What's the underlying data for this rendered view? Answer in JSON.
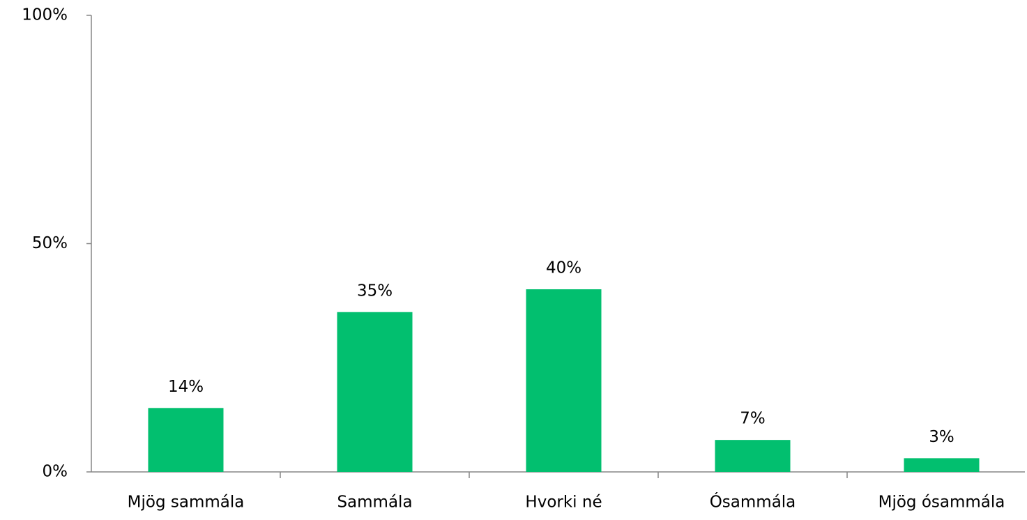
{
  "chart_data": {
    "type": "bar",
    "categories": [
      "Mjög sammála",
      "Sammála",
      "Hvorki né",
      "Ósammála",
      "Mjög ósammála"
    ],
    "values": [
      14,
      35,
      40,
      7,
      3
    ],
    "value_labels": [
      "14%",
      "35%",
      "40%",
      "7%",
      "3%"
    ],
    "color": "#02bf6f",
    "ylim": [
      0,
      100
    ],
    "yticks": [
      {
        "value": 0,
        "label": "0%"
      },
      {
        "value": 50,
        "label": "50%"
      },
      {
        "value": 100,
        "label": "100%"
      }
    ],
    "grid": false
  }
}
